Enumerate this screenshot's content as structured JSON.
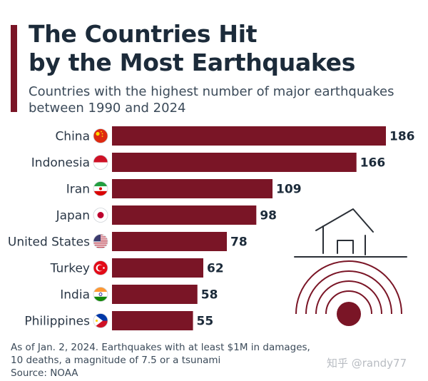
{
  "header": {
    "title_line1": "The Countries Hit",
    "title_line2": "by the Most Earthquakes",
    "subtitle_line1": "Countries with the highest number of major earthquakes",
    "subtitle_line2": "between 1990 and 2024"
  },
  "footer": {
    "note_line1": "As of Jan. 2, 2024. Earthquakes with at least $1M in damages,",
    "note_line2": "10 deaths, a magnitude of 7.5 or a tsunami",
    "source": "Source: NOAA",
    "watermark": "知乎 @randy77"
  },
  "colors": {
    "bar": "#7a1526",
    "accent": "#7a1526",
    "illustration": "#7a1526"
  },
  "chart_data": {
    "type": "bar",
    "orientation": "horizontal",
    "categories": [
      "China",
      "Indonesia",
      "Iran",
      "Japan",
      "United States",
      "Turkey",
      "India",
      "Philippines"
    ],
    "values": [
      186,
      166,
      109,
      98,
      78,
      62,
      58,
      55
    ],
    "flags": [
      "china-flag-icon",
      "indonesia-flag-icon",
      "iran-flag-icon",
      "japan-flag-icon",
      "us-flag-icon",
      "turkey-flag-icon",
      "india-flag-icon",
      "philippines-flag-icon"
    ],
    "title": "The Countries Hit by the Most Earthquakes",
    "xlim": [
      0,
      186
    ],
    "grid": false,
    "legend": "none",
    "data_labels": true
  }
}
